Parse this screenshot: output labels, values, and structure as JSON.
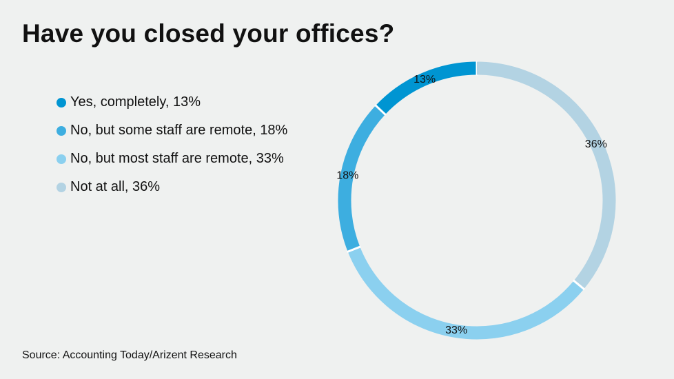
{
  "chart_data": {
    "type": "pie",
    "variant": "donut",
    "title": "Have you closed your offices?",
    "legend_position": "left",
    "slices": [
      {
        "label": "Yes, completely",
        "value": 13,
        "data_label": "13%",
        "legend": "Yes, completely, 13%",
        "color": "#0095d2"
      },
      {
        "label": "No, but some staff are remote",
        "value": 18,
        "data_label": "18%",
        "legend": "No, but some staff are remote, 18%",
        "color": "#3daee0"
      },
      {
        "label": "No, but most staff are remote",
        "value": 33,
        "data_label": "33%",
        "legend": "No, but most staff are remote, 33%",
        "color": "#8bd0ef"
      },
      {
        "label": "Not at all",
        "value": 36,
        "data_label": "36%",
        "legend": "Not at all, 36%",
        "color": "#b3d3e3"
      }
    ],
    "direction": "counterclockwise from top",
    "source": "Source: Accounting Today/Arizent Research"
  }
}
